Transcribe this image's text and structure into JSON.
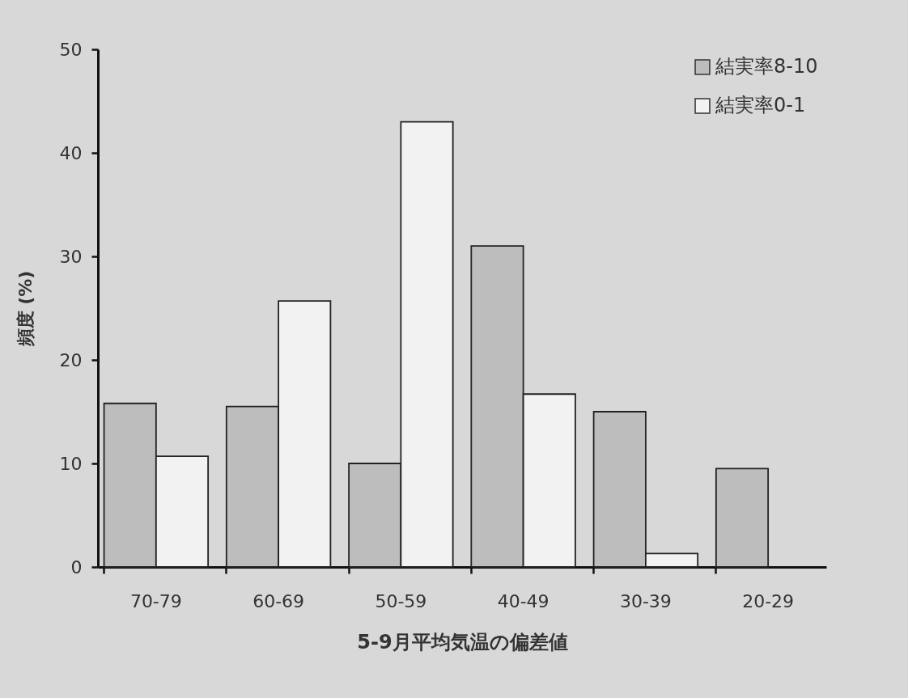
{
  "chart_data": {
    "type": "bar",
    "xlabel": "5-9月平均気温の偏差値",
    "ylabel": "頻度 (%)",
    "categories": [
      "70-79",
      "60-69",
      "50-59",
      "40-49",
      "30-39",
      "20-29"
    ],
    "series": [
      {
        "name": "結実率8-10",
        "color": "#bdbdbd",
        "values": [
          15.8,
          15.5,
          10,
          31,
          15,
          9.5
        ]
      },
      {
        "name": "結実率0-1",
        "color": "#f2f2f2",
        "values": [
          10.7,
          25.7,
          43,
          16.7,
          1.3,
          null
        ]
      }
    ],
    "ylim": [
      0,
      50
    ],
    "yticks": [
      0,
      10,
      20,
      30,
      40,
      50
    ],
    "legend": "top right"
  }
}
